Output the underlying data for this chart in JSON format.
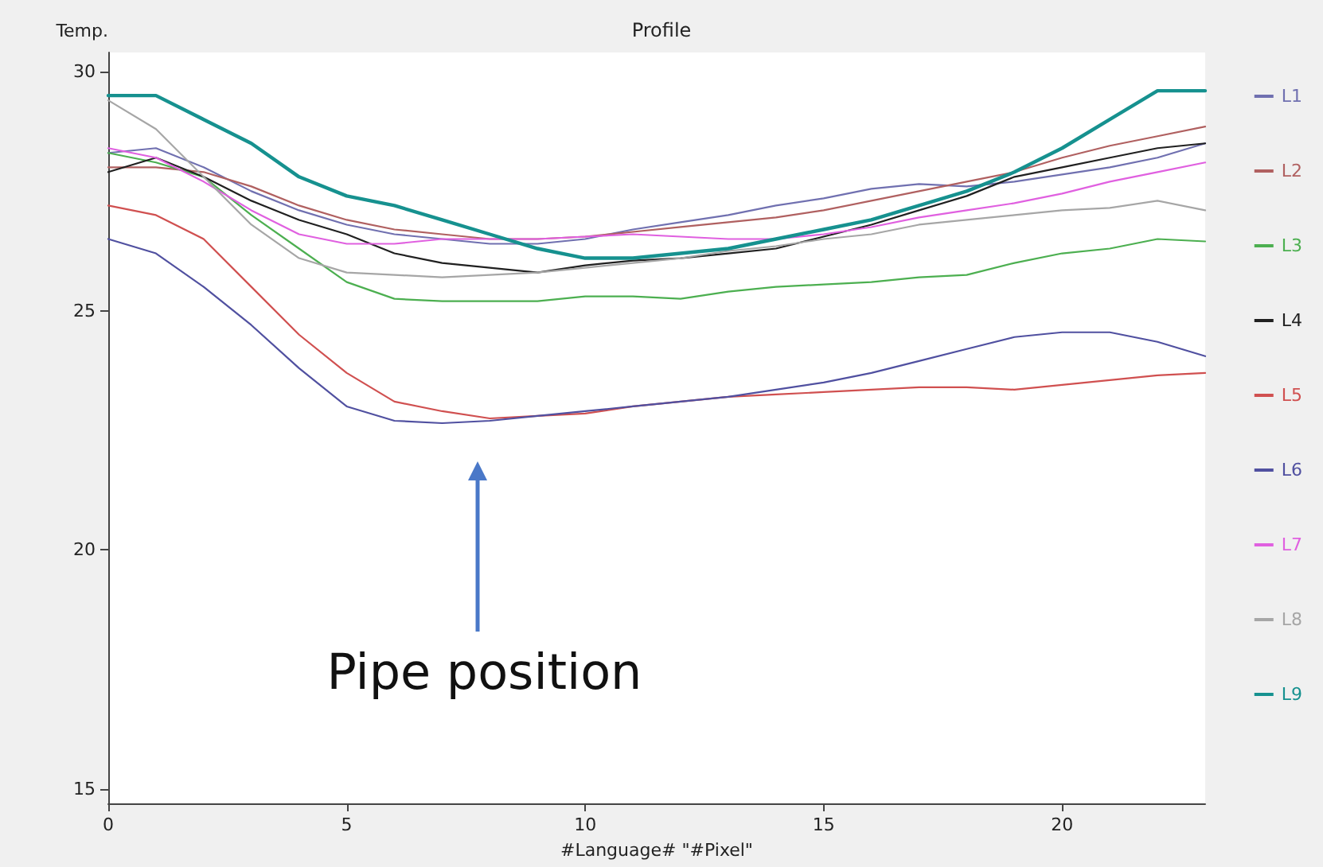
{
  "chart_data": {
    "type": "line",
    "title": "Profile",
    "ylabel": "Temp.",
    "xlabel": "#Language# \"#Pixel\"",
    "x": [
      0,
      1,
      2,
      3,
      4,
      5,
      6,
      7,
      8,
      9,
      10,
      11,
      12,
      13,
      14,
      15,
      16,
      17,
      18,
      19,
      20,
      21,
      22,
      23
    ],
    "xlim": [
      0,
      23
    ],
    "xticks": [
      0,
      5,
      10,
      15,
      20
    ],
    "ylim": [
      14.7,
      30.4
    ],
    "yticks": [
      15,
      20,
      25,
      30
    ],
    "grid": false,
    "legend": "right",
    "marker": "none",
    "line_style": "solid",
    "annotations": [
      "Pipe position"
    ],
    "series": [
      {
        "name": "L1",
        "color": "#7070b0",
        "values": [
          28.3,
          28.4,
          28.0,
          27.5,
          27.1,
          26.8,
          26.6,
          26.5,
          26.4,
          26.4,
          26.5,
          26.7,
          26.85,
          27.0,
          27.2,
          27.35,
          27.55,
          27.65,
          27.6,
          27.7,
          27.85,
          28.0,
          28.2,
          28.5
        ]
      },
      {
        "name": "L2",
        "color": "#b06060",
        "values": [
          28.0,
          28.0,
          27.9,
          27.6,
          27.2,
          26.9,
          26.7,
          26.6,
          26.5,
          26.5,
          26.55,
          26.65,
          26.75,
          26.85,
          26.95,
          27.1,
          27.3,
          27.5,
          27.7,
          27.9,
          28.2,
          28.45,
          28.65,
          28.85
        ]
      },
      {
        "name": "L3",
        "color": "#4caf50",
        "values": [
          28.3,
          28.1,
          27.8,
          27.0,
          26.3,
          25.6,
          25.25,
          25.2,
          25.2,
          25.2,
          25.3,
          25.3,
          25.25,
          25.4,
          25.5,
          25.55,
          25.6,
          25.7,
          25.75,
          26.0,
          26.2,
          26.3,
          26.5,
          26.45
        ]
      },
      {
        "name": "L4",
        "color": "#202020",
        "values": [
          27.9,
          28.2,
          27.8,
          27.3,
          26.9,
          26.6,
          26.2,
          26.0,
          25.9,
          25.8,
          25.95,
          26.05,
          26.1,
          26.2,
          26.3,
          26.55,
          26.8,
          27.1,
          27.4,
          27.8,
          28.0,
          28.2,
          28.4,
          28.5
        ]
      },
      {
        "name": "L5",
        "color": "#d05050",
        "values": [
          27.2,
          27.0,
          26.5,
          25.5,
          24.5,
          23.7,
          23.1,
          22.9,
          22.75,
          22.8,
          22.85,
          23.0,
          23.1,
          23.2,
          23.25,
          23.3,
          23.35,
          23.4,
          23.4,
          23.35,
          23.45,
          23.55,
          23.65,
          23.7
        ]
      },
      {
        "name": "L6",
        "color": "#5050a0",
        "values": [
          26.5,
          26.2,
          25.5,
          24.7,
          23.8,
          23.0,
          22.7,
          22.65,
          22.7,
          22.8,
          22.9,
          23.0,
          23.1,
          23.2,
          23.35,
          23.5,
          23.7,
          23.95,
          24.2,
          24.45,
          24.55,
          24.55,
          24.35,
          24.05
        ]
      },
      {
        "name": "L7",
        "color": "#e060e0",
        "values": [
          28.4,
          28.2,
          27.7,
          27.1,
          26.6,
          26.4,
          26.4,
          26.5,
          26.5,
          26.5,
          26.55,
          26.6,
          26.55,
          26.5,
          26.5,
          26.6,
          26.75,
          26.95,
          27.1,
          27.25,
          27.45,
          27.7,
          27.9,
          28.1
        ]
      },
      {
        "name": "L8",
        "color": "#a6a6a6",
        "values": [
          29.4,
          28.8,
          27.8,
          26.8,
          26.1,
          25.8,
          25.75,
          25.7,
          25.75,
          25.8,
          25.9,
          26.0,
          26.1,
          26.25,
          26.35,
          26.5,
          26.6,
          26.8,
          26.9,
          27.0,
          27.1,
          27.15,
          27.3,
          27.1
        ]
      },
      {
        "name": "L9",
        "color": "#16918f",
        "values": [
          29.5,
          29.5,
          29.0,
          28.5,
          27.8,
          27.4,
          27.2,
          26.9,
          26.6,
          26.3,
          26.1,
          26.1,
          26.2,
          26.3,
          26.5,
          26.7,
          26.9,
          27.2,
          27.5,
          27.9,
          28.4,
          29.0,
          29.6,
          29.6
        ]
      }
    ]
  }
}
